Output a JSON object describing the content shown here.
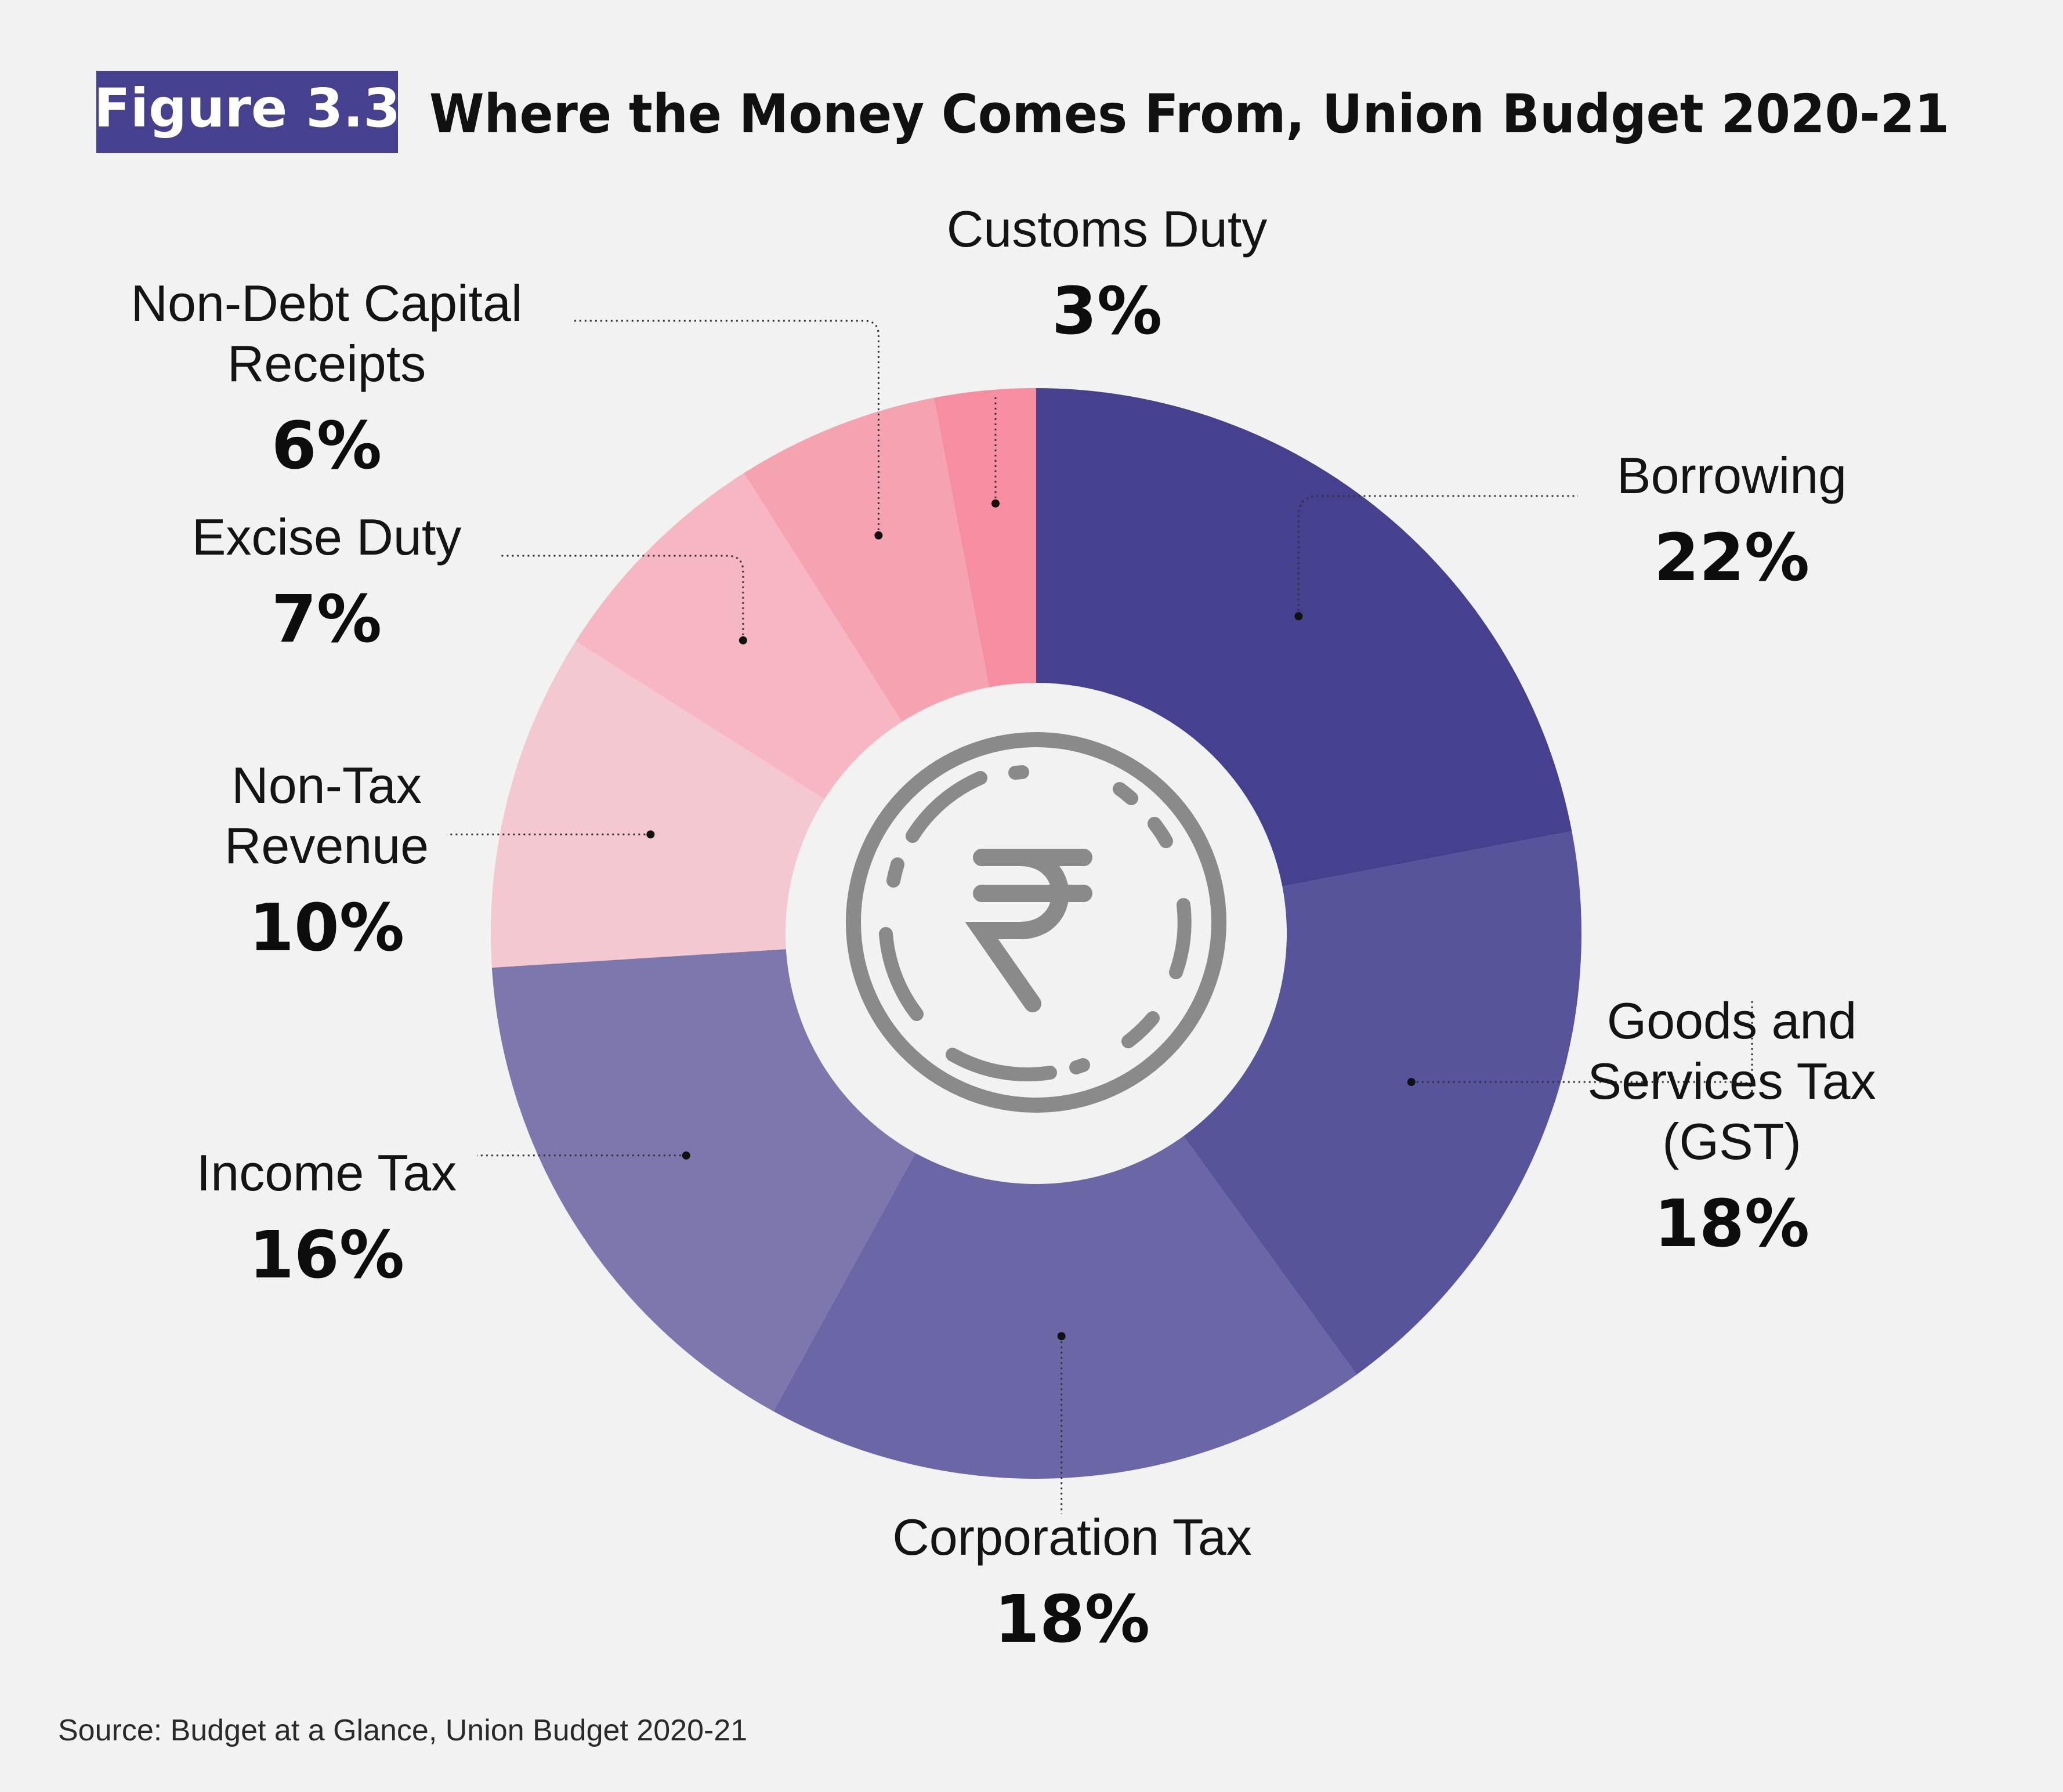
{
  "header": {
    "figure_label": "Figure 3.3",
    "title": "Where the Money Comes From, Union Budget 2020-21"
  },
  "chart_data": {
    "type": "pie",
    "style": "donut",
    "title": "Where the Money Comes From, Union Budget 2020-21",
    "unit": "%",
    "slices": [
      {
        "name": "Borrowing",
        "value": 22,
        "label_lines": [
          "Borrowing"
        ],
        "color": "#46418e"
      },
      {
        "name": "Goods and Services Tax (GST)",
        "value": 18,
        "label_lines": [
          "Goods and",
          "Services Tax",
          "(GST)"
        ],
        "color": "#58549c"
      },
      {
        "name": "Corporation Tax",
        "value": 18,
        "label_lines": [
          "Corporation Tax"
        ],
        "color": "#6b66a6"
      },
      {
        "name": "Income Tax",
        "value": 16,
        "label_lines": [
          "Income Tax"
        ],
        "color": "#7c78ae"
      },
      {
        "name": "Non-Tax Revenue",
        "value": 10,
        "label_lines": [
          "Non-Tax",
          "Revenue"
        ],
        "color": "#f4c8d0"
      },
      {
        "name": "Excise Duty",
        "value": 7,
        "label_lines": [
          "Excise Duty"
        ],
        "color": "#f6b7c3"
      },
      {
        "name": "Non-Debt Capital Receipts",
        "value": 6,
        "label_lines": [
          "Non-Debt Capital",
          "Receipts"
        ],
        "color": "#f6a3b1"
      },
      {
        "name": "Customs Duty",
        "value": 3,
        "label_lines": [
          "Customs Duty"
        ],
        "color": "#f68da0"
      }
    ],
    "center_icon": "rupee-coin-icon",
    "badge_color": "#46418e"
  },
  "source": "Source: Budget at a Glance, Union Budget 2020-21"
}
